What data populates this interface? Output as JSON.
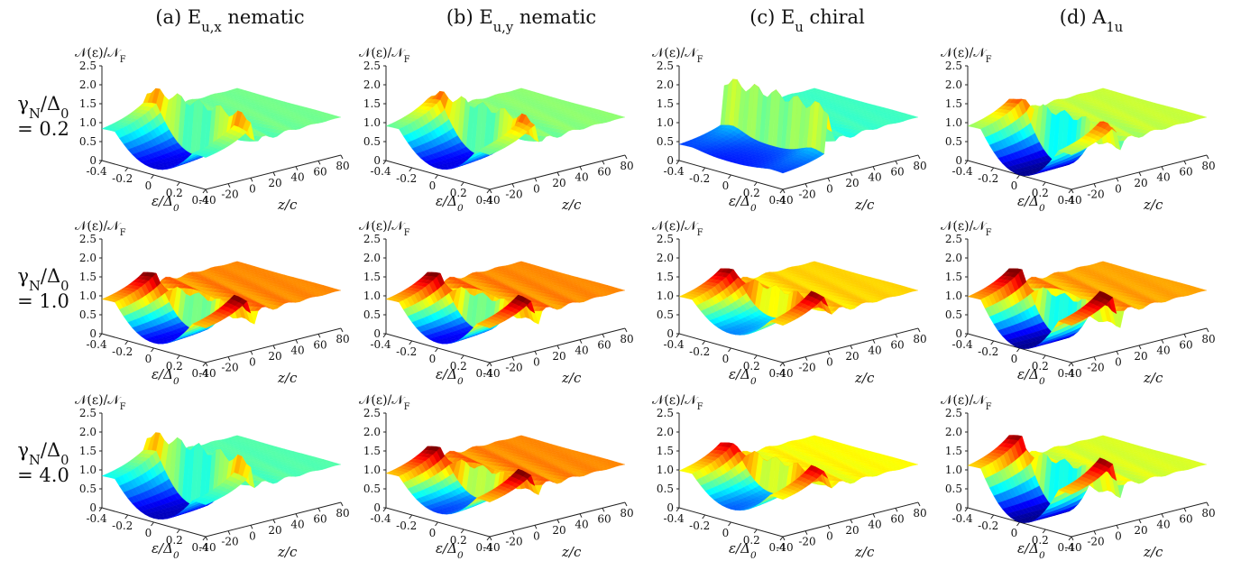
{
  "figure": {
    "columns": [
      {
        "title": "(a) E_{u,x} nematic"
      },
      {
        "title": "(b) E_{u,y} nematic"
      },
      {
        "title": "(c) E_u chiral"
      },
      {
        "title": "(d) A_{1u}"
      }
    ],
    "rows": [
      {
        "label_line1": "γ_N/Δ_0",
        "label_line2": "= 0.2"
      },
      {
        "label_line1": "γ_N/Δ_0",
        "label_line2": "= 1.0"
      },
      {
        "label_line1": "γ_N/Δ_0",
        "label_line2": "= 4.0"
      }
    ],
    "z_axis_label": "𝒩(ε)/𝒩_F",
    "x_axis_label": "ε/Δ_0",
    "y_axis_label": "z/c",
    "colormap": [
      "#00008f",
      "#0000ff",
      "#0080ff",
      "#00ffff",
      "#80ff80",
      "#ffff00",
      "#ff8000",
      "#ff0000",
      "#800000"
    ]
  },
  "chart_data": [
    {
      "type": "surface",
      "panel": "(a) row 1",
      "x_ticks": [
        "-0.4",
        "-0.2",
        "0",
        "0.2",
        "0.4"
      ],
      "y_ticks": [
        "-40",
        "-20",
        "0",
        "20",
        "40",
        "60",
        "80"
      ],
      "z_ticks": [
        "0",
        "0.5",
        "1.0",
        "1.5",
        "2.0",
        "2.5"
      ],
      "zlim": [
        0,
        2.5
      ],
      "profile": [
        {
          "z": -40,
          "gap": 0.25,
          "bulk": 1.2
        },
        {
          "z": 0,
          "gap": 0.25,
          "peak": 2.05
        },
        {
          "z": 80,
          "gap": 0.9,
          "bulk": 1.0
        }
      ],
      "peak": 2.05
    },
    {
      "type": "surface",
      "panel": "(b) row 1",
      "x_ticks": [
        "-0.4",
        "-0.2",
        "0",
        "0.2",
        "0.4"
      ],
      "y_ticks": [
        "-40",
        "-20",
        "0",
        "20",
        "40",
        "60",
        "80"
      ],
      "z_ticks": [
        "0",
        "0.5",
        "1.0",
        "1.5",
        "2.0",
        "2.5"
      ],
      "zlim": [
        0,
        2.5
      ],
      "profile": [
        {
          "z": -40,
          "gap": 0.25,
          "bulk": 1.3
        },
        {
          "z": 0,
          "gap": 0.25,
          "peak": 1.95
        },
        {
          "z": 80,
          "gap": 0.9,
          "bulk": 1.0
        }
      ],
      "peak": 1.95
    },
    {
      "type": "surface",
      "panel": "(c) row 1",
      "x_ticks": [
        "-0.4",
        "-0.2",
        "0",
        "0.2",
        "0.4"
      ],
      "y_ticks": [
        "-40",
        "-20",
        "0",
        "20",
        "40",
        "60",
        "80"
      ],
      "z_ticks": [
        "0",
        "0.5",
        "1.0",
        "1.5",
        "2.0",
        "2.5"
      ],
      "zlim": [
        0,
        2.5
      ],
      "profile": [
        {
          "z": -40,
          "gap": 0.5,
          "bulk": 0.6
        },
        {
          "z": 0,
          "gap": 0.5,
          "peak": 2.3
        },
        {
          "z": 80,
          "gap": 0.9,
          "bulk": 1.0
        }
      ],
      "peak": 2.3
    },
    {
      "type": "surface",
      "panel": "(d) row 1",
      "x_ticks": [
        "-0.4",
        "-0.2",
        "0",
        "0.2",
        "0.4"
      ],
      "y_ticks": [
        "-40",
        "-20",
        "0",
        "20",
        "40",
        "60",
        "80"
      ],
      "z_ticks": [
        "0",
        "0.5",
        "1.0",
        "1.5",
        "2.0",
        "2.5"
      ],
      "zlim": [
        0,
        2.5
      ],
      "profile": [
        {
          "z": -40,
          "gap": 0.0,
          "bulk": 1.3
        },
        {
          "z": 0,
          "gap": 0.0,
          "peak": 1.75
        },
        {
          "z": 80,
          "gap": 0.9,
          "bulk": 1.0
        }
      ],
      "peak": 1.75
    },
    {
      "type": "surface",
      "panel": "(a) row 2",
      "x_ticks": [
        "-0.4",
        "-0.2",
        "0",
        "0.2",
        "0.4"
      ],
      "y_ticks": [
        "-40",
        "-20",
        "0",
        "20",
        "40",
        "60",
        "80"
      ],
      "z_ticks": [
        "0",
        "0.5",
        "1.0",
        "1.5",
        "2.0",
        "2.5"
      ],
      "zlim": [
        0,
        2.5
      ],
      "profile": [
        {
          "z": -40,
          "gap": 0.2,
          "bulk": 1.3
        },
        {
          "z": 0,
          "gap": 0.3,
          "peak": 1.35
        },
        {
          "z": 80,
          "gap": 1.0,
          "bulk": 1.0
        }
      ],
      "peak": 1.35
    },
    {
      "type": "surface",
      "panel": "(b) row 2",
      "x_ticks": [
        "-0.4",
        "-0.2",
        "0",
        "0.2",
        "0.4"
      ],
      "y_ticks": [
        "-40",
        "-20",
        "0",
        "20",
        "40",
        "60",
        "80"
      ],
      "z_ticks": [
        "0",
        "0.5",
        "1.0",
        "1.5",
        "2.0",
        "2.5"
      ],
      "zlim": [
        0,
        2.5
      ],
      "profile": [
        {
          "z": -40,
          "gap": 0.2,
          "bulk": 1.3
        },
        {
          "z": 0,
          "gap": 0.3,
          "peak": 1.35
        },
        {
          "z": 80,
          "gap": 1.0,
          "bulk": 1.0
        }
      ],
      "peak": 1.35
    },
    {
      "type": "surface",
      "panel": "(c) row 2",
      "x_ticks": [
        "-0.4",
        "-0.2",
        "0",
        "0.2",
        "0.4"
      ],
      "y_ticks": [
        "-40",
        "-20",
        "0",
        "20",
        "40",
        "60",
        "80"
      ],
      "z_ticks": [
        "0",
        "0.5",
        "1.0",
        "1.5",
        "2.0",
        "2.5"
      ],
      "zlim": [
        0,
        2.5
      ],
      "profile": [
        {
          "z": -40,
          "gap": 0.55,
          "bulk": 1.4
        },
        {
          "z": 0,
          "gap": 0.55,
          "peak": 1.5
        },
        {
          "z": 80,
          "gap": 1.0,
          "bulk": 1.0
        }
      ],
      "peak": 1.5
    },
    {
      "type": "surface",
      "panel": "(d) row 2",
      "x_ticks": [
        "-0.4",
        "-0.2",
        "0",
        "0.2",
        "0.4"
      ],
      "y_ticks": [
        "-40",
        "-20",
        "0",
        "20",
        "40",
        "60",
        "80"
      ],
      "z_ticks": [
        "0",
        "0.5",
        "1.0",
        "1.5",
        "2.0",
        "2.5"
      ],
      "zlim": [
        0,
        2.5
      ],
      "profile": [
        {
          "z": -40,
          "gap": 0.0,
          "bulk": 1.4
        },
        {
          "z": 0,
          "gap": 0.0,
          "peak": 1.3
        },
        {
          "z": 80,
          "gap": 1.0,
          "bulk": 1.0
        }
      ],
      "peak": 1.4
    },
    {
      "type": "surface",
      "panel": "(a) row 3",
      "x_ticks": [
        "-0.4",
        "-0.2",
        "0",
        "0.2",
        "0.4"
      ],
      "y_ticks": [
        "-40",
        "-20",
        "0",
        "20",
        "40",
        "60",
        "80"
      ],
      "z_ticks": [
        "0",
        "0.5",
        "1.0",
        "1.5",
        "2.0",
        "2.5"
      ],
      "zlim": [
        0,
        2.5
      ],
      "profile": [
        {
          "z": -40,
          "gap": 0.15,
          "bulk": 1.2
        },
        {
          "z": 0,
          "gap": 0.15,
          "peak": 2.2
        },
        {
          "z": 80,
          "gap": 1.0,
          "bulk": 1.0
        }
      ],
      "peak": 2.2
    },
    {
      "type": "surface",
      "panel": "(b) row 3",
      "x_ticks": [
        "-0.4",
        "-0.2",
        "0",
        "0.2",
        "0.4"
      ],
      "y_ticks": [
        "-40",
        "-20",
        "0",
        "20",
        "40",
        "60",
        "80"
      ],
      "z_ticks": [
        "0",
        "0.5",
        "1.0",
        "1.5",
        "2.0",
        "2.5"
      ],
      "zlim": [
        0,
        2.5
      ],
      "profile": [
        {
          "z": -40,
          "gap": 0.35,
          "bulk": 1.3
        },
        {
          "z": 0,
          "gap": 0.35,
          "peak": 1.35
        },
        {
          "z": 80,
          "gap": 1.0,
          "bulk": 1.0
        }
      ],
      "peak": 1.35
    },
    {
      "type": "surface",
      "panel": "(c) row 3",
      "x_ticks": [
        "-0.4",
        "-0.2",
        "0",
        "0.2",
        "0.4"
      ],
      "y_ticks": [
        "-40",
        "-20",
        "0",
        "20",
        "40",
        "60",
        "80"
      ],
      "z_ticks": [
        "0",
        "0.5",
        "1.0",
        "1.5",
        "2.0",
        "2.5"
      ],
      "zlim": [
        0,
        2.5
      ],
      "profile": [
        {
          "z": -40,
          "gap": 0.5,
          "bulk": 1.4
        },
        {
          "z": 0,
          "gap": 0.5,
          "peak": 1.6
        },
        {
          "z": 80,
          "gap": 1.0,
          "bulk": 1.0
        }
      ],
      "peak": 1.6
    },
    {
      "type": "surface",
      "panel": "(d) row 3",
      "x_ticks": [
        "-0.4",
        "-0.2",
        "0",
        "0.2",
        "0.4"
      ],
      "y_ticks": [
        "-40",
        "-20",
        "0",
        "20",
        "40",
        "60",
        "80"
      ],
      "z_ticks": [
        "0",
        "0.5",
        "1.0",
        "1.5",
        "2.0",
        "2.5"
      ],
      "zlim": [
        0,
        2.5
      ],
      "profile": [
        {
          "z": -40,
          "gap": 0.0,
          "bulk": 1.6
        },
        {
          "z": 0,
          "gap": 0.0,
          "peak": 1.7
        },
        {
          "z": 80,
          "gap": 1.0,
          "bulk": 1.0
        }
      ],
      "peak": 1.7
    }
  ]
}
